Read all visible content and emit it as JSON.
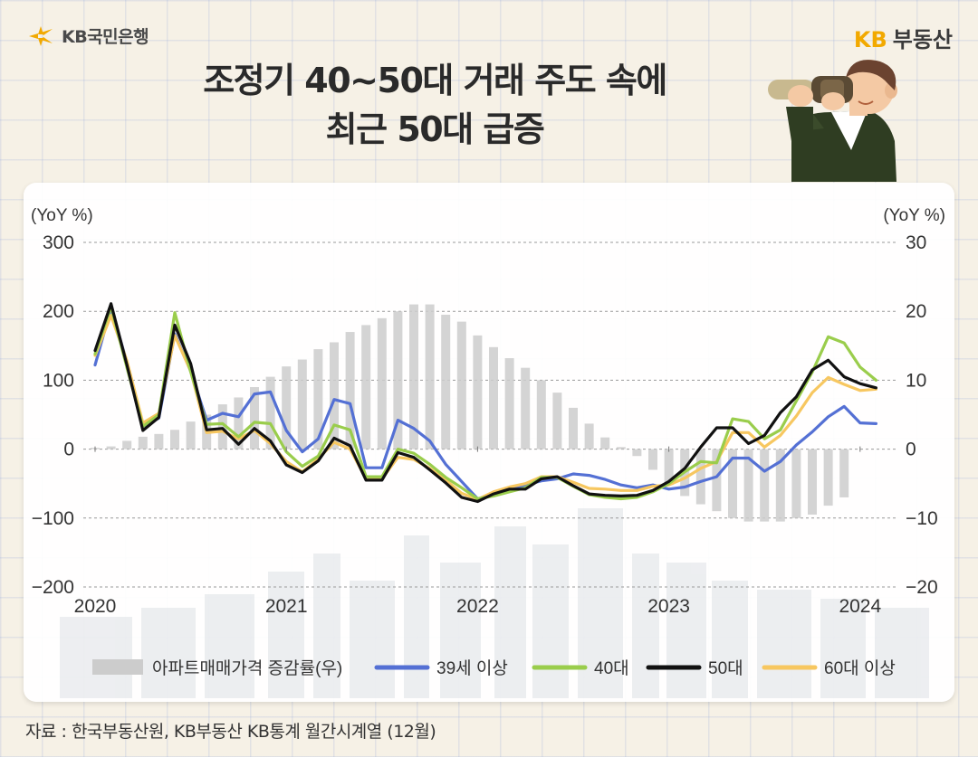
{
  "header": {
    "bank_logo_text": "KB국민은행",
    "brand_right_prefix": "KB",
    "brand_right_text": "부동산"
  },
  "title_line1": "조정기 40~50대 거래 주도 속에",
  "title_line2": "최근 50대 급증",
  "source": "자료 : 한국부동산원, KB부동산 KB통계 월간시계열 (12월)",
  "colors": {
    "bar": "#cccccc",
    "s39": "#5470d4",
    "s40": "#9acd4c",
    "s50": "#111111",
    "s60": "#f7c760",
    "accent": "#f2a900"
  },
  "chart_data": {
    "type": "line",
    "left_axis_label": "(YoY %)",
    "right_axis_label": "(YoY %)",
    "ylim_left": [
      -200,
      300
    ],
    "ylim_right": [
      -20,
      30
    ],
    "yticks_left": [
      "300",
      "200",
      "100",
      "0",
      "−100",
      "−200"
    ],
    "yticks_right": [
      "30",
      "20",
      "10",
      "0",
      "−10",
      "−20"
    ],
    "x_tick_labels": [
      "2020",
      "2021",
      "2022",
      "2023",
      "2024"
    ],
    "x_start": "2020-01",
    "grid": "dashed horizontal",
    "legend_position": "bottom",
    "bars": {
      "name": "아파트매매가격 증감률(우)",
      "axis": "right",
      "values": [
        0.2,
        0.4,
        1.2,
        1.8,
        2.2,
        2.8,
        4,
        5,
        6.5,
        7.5,
        9,
        10.5,
        12,
        13,
        14.5,
        15.5,
        17,
        18,
        19,
        20,
        21,
        21,
        19.5,
        18.5,
        16.5,
        14.8,
        13.2,
        11.8,
        10,
        8.2,
        6,
        3.7,
        1.7,
        0.3,
        -1,
        -3,
        -5.2,
        -6.8,
        -8,
        -9,
        -10,
        -10.5,
        -10.5,
        -10.5,
        -10,
        -9.5,
        -8.2,
        -7
      ]
    },
    "series": [
      {
        "name": "39세 이상",
        "values": [
          122,
          205,
          126,
          33,
          45,
          167,
          113,
          42,
          52,
          47,
          80,
          83,
          27,
          -4,
          15,
          72,
          66,
          -27,
          -27,
          42,
          30,
          12,
          -22,
          -47,
          -72,
          -67,
          -60,
          -52,
          -46,
          -43,
          -36,
          -38,
          -44,
          -52,
          -56,
          -52,
          -58,
          -55,
          -47,
          -40,
          -13,
          -13,
          -32,
          -18,
          6,
          25,
          47,
          62,
          38,
          37
        ]
      },
      {
        "name": "40대",
        "values": [
          138,
          207,
          118,
          33,
          50,
          198,
          112,
          36,
          37,
          18,
          39,
          37,
          -4,
          -25,
          -10,
          35,
          28,
          -40,
          -40,
          0,
          -6,
          -22,
          -41,
          -56,
          -72,
          -68,
          -62,
          -56,
          -41,
          -41,
          -54,
          -66,
          -70,
          -72,
          -70,
          -62,
          -50,
          -33,
          -18,
          -20,
          44,
          40,
          15,
          28,
          70,
          112,
          163,
          154,
          119,
          100
        ]
      },
      {
        "name": "50대",
        "values": [
          143,
          211,
          122,
          27,
          46,
          180,
          124,
          28,
          30,
          7,
          30,
          12,
          -23,
          -34,
          -17,
          16,
          5,
          -45,
          -45,
          -5,
          -12,
          -30,
          -49,
          -70,
          -76,
          -65,
          -58,
          -58,
          -43,
          -40,
          -53,
          -65,
          -67,
          -68,
          -67,
          -60,
          -47,
          -28,
          3,
          31,
          31,
          8,
          20,
          53,
          76,
          115,
          129,
          105,
          95,
          89
        ]
      },
      {
        "name": "60대 이상",
        "values": [
          136,
          194,
          128,
          38,
          52,
          165,
          113,
          24,
          26,
          15,
          27,
          8,
          -18,
          -33,
          -14,
          10,
          0,
          -43,
          -43,
          -12,
          -15,
          -28,
          -45,
          -64,
          -73,
          -62,
          -55,
          -50,
          -40,
          -40,
          -48,
          -57,
          -58,
          -60,
          -60,
          -54,
          -52,
          -42,
          -28,
          -18,
          24,
          24,
          3,
          20,
          48,
          82,
          104,
          94,
          85,
          87
        ]
      }
    ]
  }
}
